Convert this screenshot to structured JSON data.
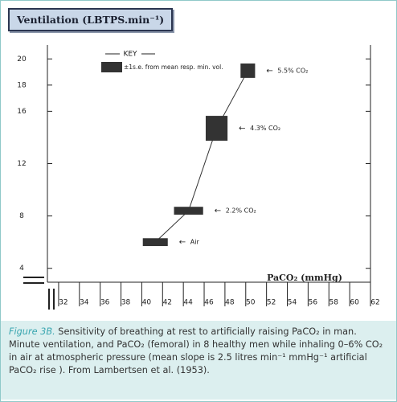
{
  "chart_data": {
    "type": "errorbox",
    "title": "Ventilation (LBTPS.min⁻¹)",
    "x_label": "PaCO₂ (mmHg)",
    "key": {
      "title": "KEY",
      "label": "±1s.e. from mean resp. min. vol."
    },
    "xlim": [
      31,
      62
    ],
    "xticks": [
      32,
      34,
      36,
      38,
      40,
      42,
      44,
      46,
      48,
      50,
      52,
      54,
      56,
      58,
      60,
      62
    ],
    "ylim": [
      3,
      21
    ],
    "yticks": [
      4,
      8,
      12,
      16,
      18,
      20
    ],
    "series": [
      {
        "color": "#333333",
        "x": [
          41.3,
          44.5,
          47.2,
          50.2
        ],
        "x_err": [
          1.2,
          1.4,
          1.05,
          0.7
        ],
        "values": [
          6.0,
          8.4,
          14.7,
          19.1
        ],
        "y_err": [
          0.3,
          0.3,
          0.95,
          0.55
        ],
        "labels": [
          "Air",
          "2.2% CO₂",
          "4.3% CO₂",
          "5.5% CO₂"
        ]
      }
    ]
  },
  "caption": {
    "label": "Figure 3B.",
    "text": "Sensitivity of breathing at rest to artificially raising PaCO₂ in man. Minute ventilation, and PaCO₂ (femoral) in 8 healthy men while inhaling 0–6% CO₂ in air at atmospheric pressure (mean slope is 2.5 litres min⁻¹ mmHg⁻¹ artificial PaCO₂ rise ). From Lambertsen et al. (1953)."
  }
}
